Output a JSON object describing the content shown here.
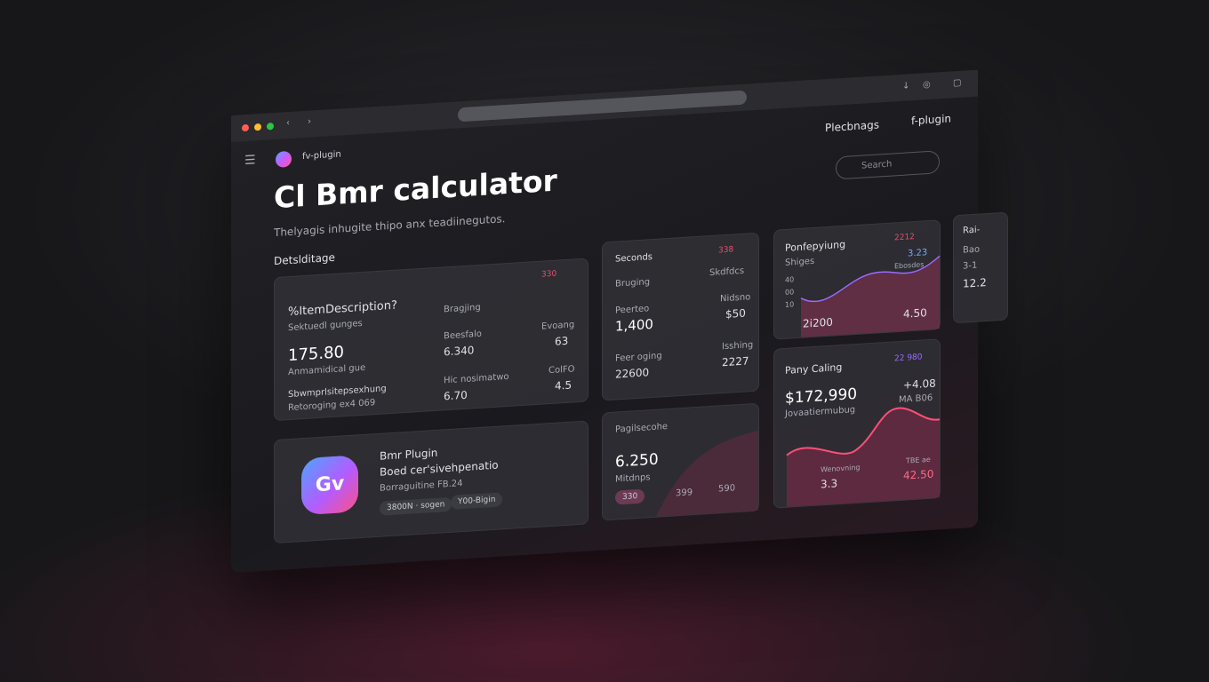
{
  "browser": {
    "menu_items": [
      "Plecbnags",
      "f-plugin"
    ]
  },
  "app": {
    "name": "fv-plugin",
    "title": "Cl Bmr calculator",
    "subtitle": "Thelyagis inhugite thipo anx teadiinegutos.",
    "section": "Detslditage",
    "search": "Search"
  },
  "summary": {
    "badge": "330",
    "title": "%ItemDescription?",
    "subtitle": "Sektuedl gunges",
    "value": "175.80",
    "caption": "Anmamidical gue",
    "items": [
      "Sbwmprlsitepsexhung",
      "Retoroging ex4 069"
    ],
    "header": "Bragjing",
    "rows": [
      {
        "label": "Beesfalo",
        "value": "6.340",
        "label2": "Evoang",
        "value2": "63"
      },
      {
        "label": "Hic nosimatwo",
        "value": "6.70",
        "label2": "ColFO",
        "value2": "4.5"
      }
    ]
  },
  "plugin": {
    "logo": "Gv",
    "title": "Bmr Plugin",
    "line": "Boed cer'sivehpenatio",
    "subtitle": "Borraguitine FB.24",
    "chips": [
      "3800N · sogen",
      "Y00-Bigin"
    ]
  },
  "seconds": {
    "title": "Seconds",
    "badge": "338",
    "header": "Bruging",
    "header2": "Skdfdcs",
    "rows": [
      {
        "label": "Peerteo",
        "value": "1,400",
        "label2": "Nidsno",
        "value2": "$50"
      },
      {
        "label": "Feer oging",
        "value": "22600",
        "label2": "Isshing",
        "value2": "2227"
      }
    ]
  },
  "page": {
    "title": "Pagilsecohe",
    "value": "6.250",
    "subtitle": "Mitdnps",
    "chips": [
      "330",
      "399",
      "590"
    ]
  },
  "ponfe": {
    "title": "Ponfepyiung",
    "badge": "2212",
    "subtitle": "Shiges",
    "value": "3.23",
    "caption": "Ebosdes",
    "axis": [
      "40",
      "00",
      "10"
    ],
    "footer": "2i200",
    "footer2": "4.50"
  },
  "pany": {
    "title": "Pany Caling",
    "badge": "22 980",
    "value": "$172,990",
    "subtitle": "Jovaatiermubug",
    "side": "+4.08",
    "side2": "MA B06",
    "foot_label": "Wenovning",
    "foot_value": "3.3",
    "foot_label2": "TBE ae",
    "foot_value2": "42.50"
  },
  "partial": {
    "title": "Rai-",
    "lines": [
      "Bao",
      "3-1",
      "12.2"
    ]
  }
}
